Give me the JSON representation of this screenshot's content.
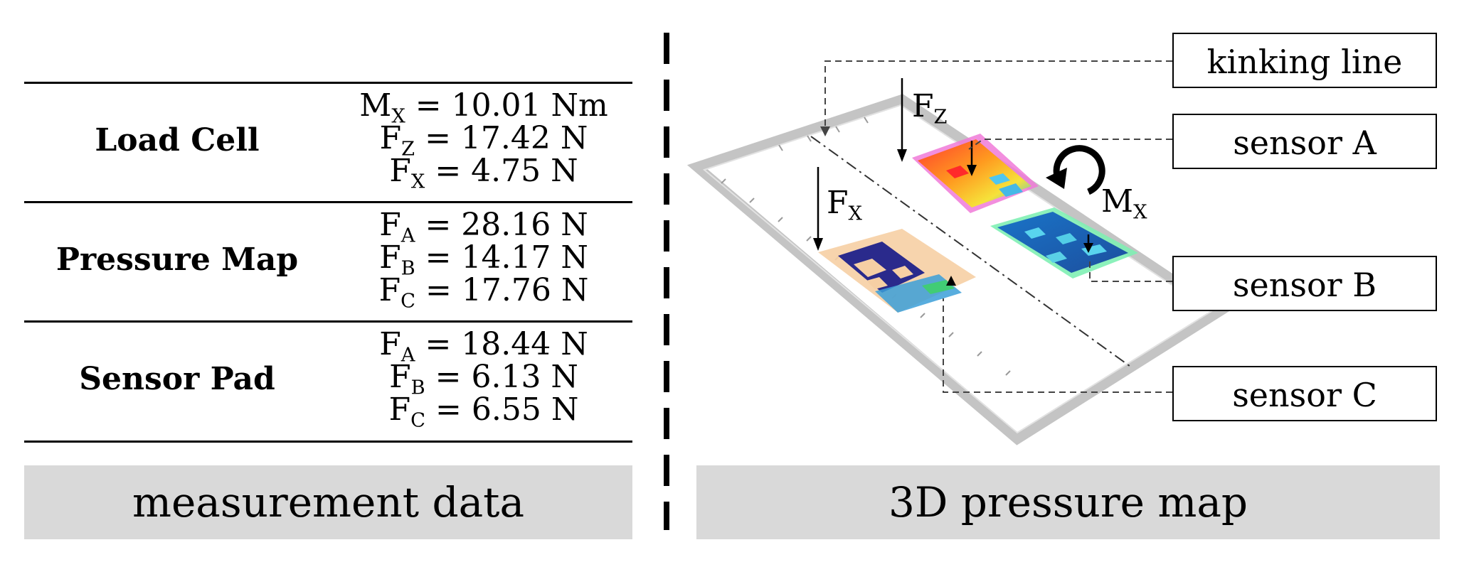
{
  "measurement": {
    "panel_label": "measurement data",
    "rows": [
      {
        "title": "Load Cell",
        "values": [
          {
            "sym": "M",
            "sub": "X",
            "val": " = 10.01 Nm"
          },
          {
            "sym": "F",
            "sub": "Z",
            "val": " = 17.42 N"
          },
          {
            "sym": "F",
            "sub": "X",
            "val": " = 4.75 N"
          }
        ]
      },
      {
        "title": "Pressure Map",
        "values": [
          {
            "sym": "F",
            "sub": "A",
            "val": " = 28.16 N"
          },
          {
            "sym": "F",
            "sub": "B",
            "val": " = 14.17 N"
          },
          {
            "sym": "F",
            "sub": "C",
            "val": " = 17.76 N"
          }
        ]
      },
      {
        "title": "Sensor Pad",
        "values": [
          {
            "sym": "F",
            "sub": "A",
            "val": " = 18.44 N"
          },
          {
            "sym": "F",
            "sub": "B",
            "val": " = 6.13 N"
          },
          {
            "sym": "F",
            "sub": "C",
            "val": " = 6.55 N"
          }
        ]
      }
    ]
  },
  "map": {
    "panel_label": "3D pressure map",
    "callouts": {
      "kinking_line": "kinking line",
      "sensor_a": "sensor A",
      "sensor_b": "sensor B",
      "sensor_c": "sensor C"
    },
    "forces": {
      "fz": {
        "sym": "F",
        "sub": "Z"
      },
      "fx": {
        "sym": "F",
        "sub": "X"
      },
      "mx": {
        "sym": "M",
        "sub": "X"
      }
    }
  }
}
